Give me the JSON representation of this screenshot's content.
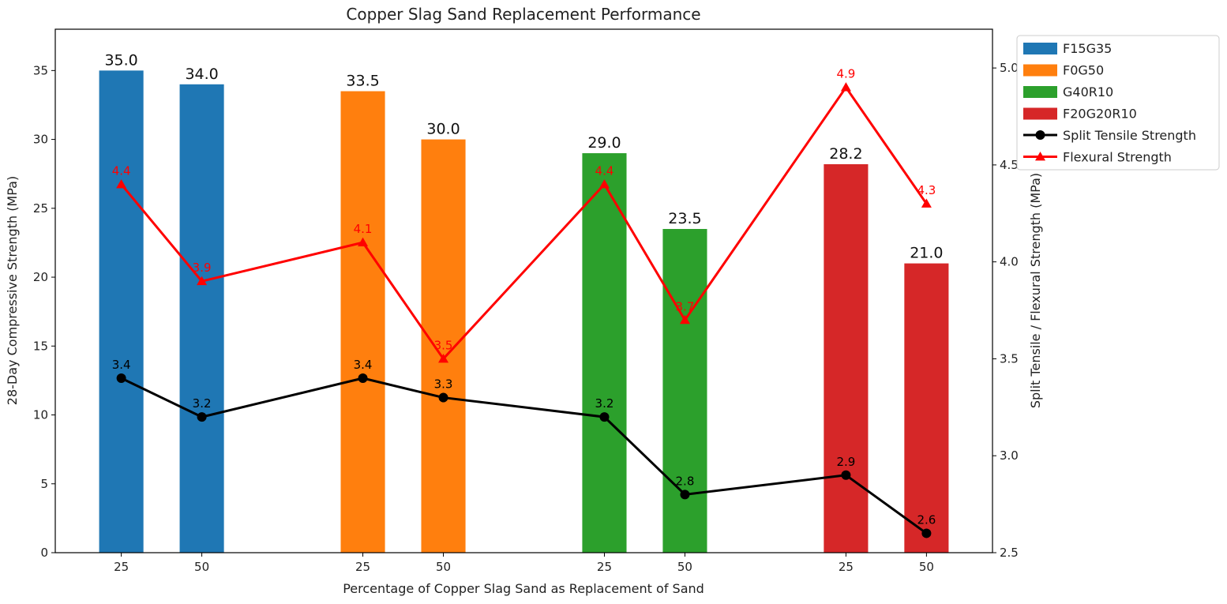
{
  "chart_data": {
    "type": "bar",
    "title": "Copper Slag Sand Replacement Performance",
    "xlabel": "Percentage of Copper Slag Sand as Replacement of Sand",
    "ylabel": "28-Day Compressive Strength (MPa)",
    "y2label": "Split Tensile / Flexural Strength (MPa)",
    "ylim": [
      0,
      38
    ],
    "y2lim": [
      2.5,
      5.2
    ],
    "yticks": [
      "0",
      "5",
      "10",
      "15",
      "20",
      "25",
      "30",
      "35"
    ],
    "y2ticks": [
      "2.5",
      "3.0",
      "3.5",
      "4.0",
      "4.5",
      "5.0"
    ],
    "x_positions": [
      0,
      1,
      3,
      4,
      6,
      7,
      9,
      10
    ],
    "xlim": [
      -0.82,
      10.82
    ],
    "categories": [
      "25",
      "50",
      "25",
      "50",
      "25",
      "50",
      "25",
      "50"
    ],
    "legend_position": "upper right, outside plot",
    "bar_series": [
      {
        "name": "F15G35",
        "color": "#1f77b4",
        "values": [
          35.0,
          34.0
        ],
        "labels": [
          "35.0",
          "34.0"
        ]
      },
      {
        "name": "F0G50",
        "color": "#ff7f0e",
        "values": [
          33.5,
          30.0
        ],
        "labels": [
          "33.5",
          "30.0"
        ]
      },
      {
        "name": "G40R10",
        "color": "#2ca02c",
        "values": [
          29.0,
          23.5
        ],
        "labels": [
          "29.0",
          "23.5"
        ]
      },
      {
        "name": "F20G20R10",
        "color": "#d62728",
        "values": [
          28.2,
          21.0
        ],
        "labels": [
          "28.2",
          "21.0"
        ]
      }
    ],
    "line_series": [
      {
        "name": "Split Tensile Strength",
        "color": "#000000",
        "marker": "circle",
        "values": [
          3.4,
          3.2,
          3.4,
          3.3,
          3.2,
          2.8,
          2.9,
          2.6
        ],
        "labels": [
          "3.4",
          "3.2",
          "3.4",
          "3.3",
          "3.2",
          "2.8",
          "2.9",
          "2.6"
        ]
      },
      {
        "name": "Flexural Strength",
        "color": "#ff0000",
        "marker": "triangle",
        "values": [
          4.4,
          3.9,
          4.1,
          3.5,
          4.4,
          3.7,
          4.9,
          4.3
        ],
        "labels": [
          "4.4",
          "3.9",
          "4.1",
          "3.5",
          "4.4",
          "3.7",
          "4.9",
          "4.3"
        ]
      }
    ]
  }
}
